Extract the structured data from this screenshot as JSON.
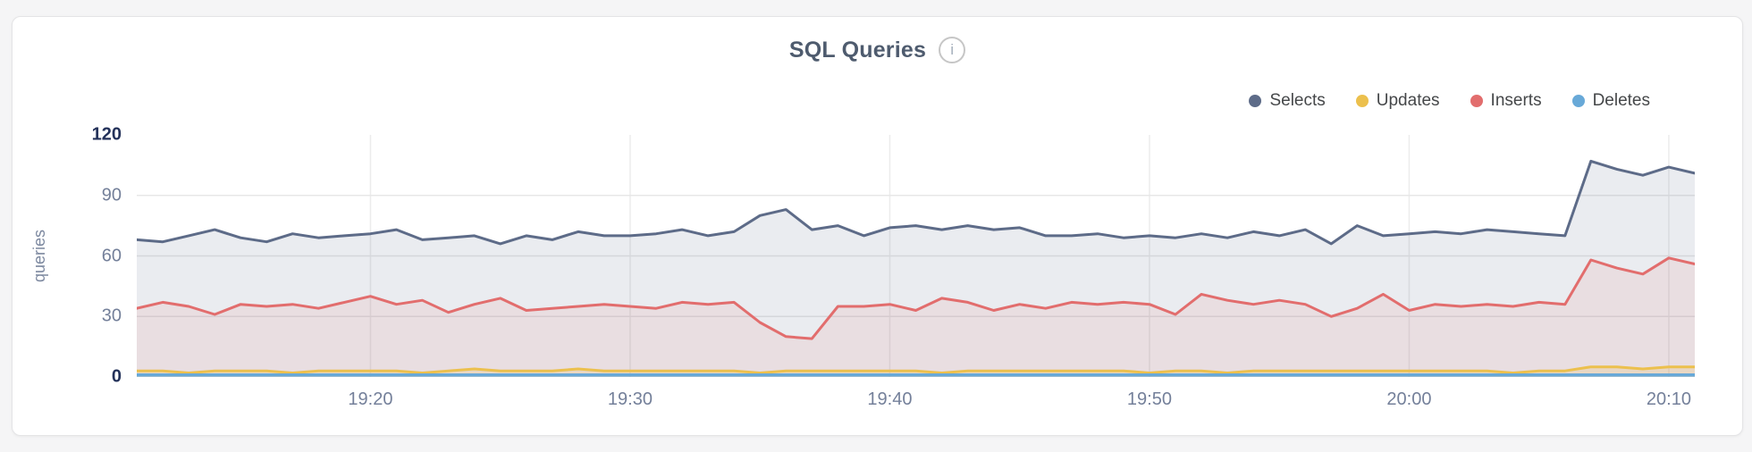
{
  "title": "SQL Queries",
  "info_icon_glyph": "i",
  "y_axis_label": "queries",
  "colors": {
    "page_bg": "#f5f5f6",
    "card_bg": "#ffffff",
    "card_border": "#e4e4e6",
    "title_text": "#4e5b6e",
    "legend_text": "#454749",
    "tick_minor": "#74809a",
    "tick_major": "#24325a",
    "grid_horizontal": "#e7e7e7",
    "grid_vertical": "#ececec",
    "selects": "#5d6b88",
    "updates": "#ecc04d",
    "inserts": "#e26d6d",
    "deletes": "#68a9d8"
  },
  "legend": [
    {
      "label": "Selects",
      "color": "#5d6b88"
    },
    {
      "label": "Updates",
      "color": "#ecc04d"
    },
    {
      "label": "Inserts",
      "color": "#e26d6d"
    },
    {
      "label": "Deletes",
      "color": "#68a9d8"
    }
  ],
  "chart_data": {
    "type": "area",
    "title": "SQL Queries",
    "xlabel": "",
    "ylabel": "queries",
    "ylim": [
      0,
      120
    ],
    "y_ticks": [
      0,
      30,
      60,
      90,
      120
    ],
    "y_ticks_emphasized": [
      0,
      120
    ],
    "y_gridlines": [
      30,
      60,
      90
    ],
    "grid": true,
    "legend_position": "top-right",
    "x_unit": "minutes elapsed since 19:11, one sample per minute",
    "x_range_minutes": [
      0,
      60
    ],
    "x_ticks": [
      {
        "m": 9,
        "label": "19:20"
      },
      {
        "m": 19,
        "label": "19:30"
      },
      {
        "m": 29,
        "label": "19:40"
      },
      {
        "m": 39,
        "label": "19:50"
      },
      {
        "m": 49,
        "label": "20:00"
      },
      {
        "m": 59,
        "label": "20:10"
      }
    ],
    "series": [
      {
        "name": "Selects",
        "color": "#5d6b88",
        "fill_opacity": 0.13,
        "stroke_width": 3,
        "values": [
          68,
          67,
          70,
          73,
          69,
          67,
          71,
          69,
          70,
          71,
          73,
          68,
          69,
          70,
          66,
          70,
          68,
          72,
          70,
          70,
          71,
          73,
          70,
          72,
          80,
          83,
          73,
          75,
          70,
          74,
          75,
          73,
          75,
          73,
          74,
          70,
          70,
          71,
          69,
          70,
          69,
          71,
          69,
          72,
          70,
          73,
          66,
          75,
          70,
          71,
          72,
          71,
          73,
          72,
          71,
          70,
          107,
          103,
          100,
          104,
          101
        ]
      },
      {
        "name": "Inserts",
        "color": "#e26d6d",
        "fill_opacity": 0.11,
        "stroke_width": 3,
        "values": [
          34,
          37,
          35,
          31,
          36,
          35,
          36,
          34,
          37,
          40,
          36,
          38,
          32,
          36,
          39,
          33,
          34,
          35,
          36,
          35,
          34,
          37,
          36,
          37,
          27,
          20,
          19,
          35,
          35,
          36,
          33,
          39,
          37,
          33,
          36,
          34,
          37,
          36,
          37,
          36,
          31,
          41,
          38,
          36,
          38,
          36,
          30,
          34,
          41,
          33,
          36,
          35,
          36,
          35,
          37,
          36,
          58,
          54,
          51,
          59,
          56
        ]
      },
      {
        "name": "Updates",
        "color": "#ecc04d",
        "fill_opacity": 0.2,
        "stroke_width": 3,
        "values": [
          3,
          3,
          2,
          3,
          3,
          3,
          2,
          3,
          3,
          3,
          3,
          2,
          3,
          4,
          3,
          3,
          3,
          4,
          3,
          3,
          3,
          3,
          3,
          3,
          2,
          3,
          3,
          3,
          3,
          3,
          3,
          2,
          3,
          3,
          3,
          3,
          3,
          3,
          3,
          2,
          3,
          3,
          2,
          3,
          3,
          3,
          3,
          3,
          3,
          3,
          3,
          3,
          3,
          2,
          3,
          3,
          5,
          5,
          4,
          5,
          5
        ]
      },
      {
        "name": "Deletes",
        "color": "#68a9d8",
        "fill_opacity": 0.25,
        "stroke_width": 3.5,
        "values": [
          1,
          1,
          1,
          1,
          1,
          1,
          1,
          1,
          1,
          1,
          1,
          1,
          1,
          1,
          1,
          1,
          1,
          1,
          1,
          1,
          1,
          1,
          1,
          1,
          1,
          1,
          1,
          1,
          1,
          1,
          1,
          1,
          1,
          1,
          1,
          1,
          1,
          1,
          1,
          1,
          1,
          1,
          1,
          1,
          1,
          1,
          1,
          1,
          1,
          1,
          1,
          1,
          1,
          1,
          1,
          1,
          1,
          1,
          1,
          1,
          1
        ]
      }
    ]
  }
}
